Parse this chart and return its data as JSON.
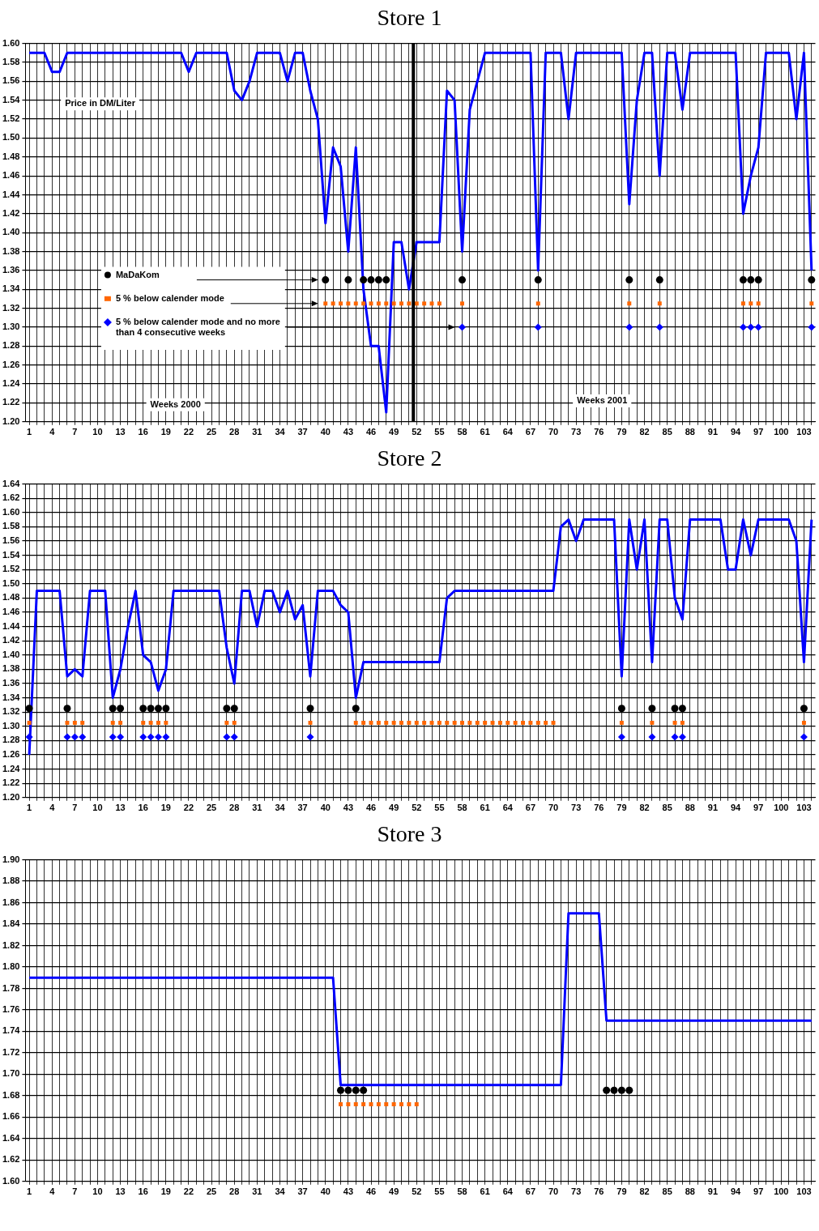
{
  "chart_data": [
    {
      "type": "line",
      "title": "Store 1",
      "ylabel": "Price in DM/Liter",
      "legend": "left",
      "annotations": [
        "Weeks 2000",
        "Weeks 2001"
      ],
      "categories": [
        "1",
        null,
        null,
        "4",
        null,
        null,
        "7",
        null,
        null,
        "10",
        null,
        null,
        "13",
        null,
        null,
        "16",
        null,
        null,
        "19",
        null,
        null,
        "22",
        null,
        null,
        "25",
        null,
        null,
        "28",
        null,
        null,
        "31",
        null,
        null,
        "34",
        null,
        null,
        "37",
        null,
        null,
        "40",
        null,
        null,
        "43",
        null,
        null,
        "46",
        null,
        null,
        "49",
        null,
        null,
        "52",
        null,
        null,
        "55",
        null,
        null,
        "58",
        null,
        null,
        "61",
        null,
        null,
        "64",
        null,
        null,
        "67",
        null,
        null,
        "70",
        null,
        null,
        "73",
        null,
        null,
        "76",
        null,
        null,
        "79",
        null,
        null,
        "82",
        null,
        null,
        "85",
        null,
        null,
        "88",
        null,
        null,
        "91",
        null,
        null,
        "94",
        null,
        null,
        "97",
        null,
        null,
        "100",
        null,
        null,
        "103",
        null
      ],
      "ylim": [
        1.2,
        1.6
      ],
      "yticks": [
        {
          "value": 1.2,
          "label": "1.20"
        },
        1.22,
        1.24,
        1.26,
        1.28,
        {
          "value": 1.3,
          "label": "1.30"
        },
        1.32,
        1.34,
        1.36,
        1.38,
        {
          "value": 1.4,
          "label": "1.40"
        },
        1.42,
        1.44,
        1.46,
        1.48,
        {
          "value": 1.5,
          "label": "1.50"
        },
        1.52,
        1.54,
        1.56,
        1.58,
        {
          "value": 1.6,
          "label": "1.60"
        }
      ],
      "grid": true,
      "ref_lines": [
        {
          "axis": "x",
          "value": "52",
          "color": "#000000"
        }
      ],
      "series": [
        {
          "type": "line",
          "marker": "none",
          "color": "#0000ff",
          "values": [
            1.59,
            1.59,
            1.59,
            1.57,
            1.57,
            1.59,
            1.59,
            1.59,
            1.59,
            1.59,
            1.59,
            1.59,
            1.59,
            1.59,
            1.59,
            1.59,
            1.59,
            1.59,
            1.59,
            1.59,
            1.59,
            1.57,
            1.59,
            1.59,
            1.59,
            1.59,
            1.59,
            1.55,
            1.54,
            1.56,
            1.59,
            1.59,
            1.59,
            1.59,
            1.56,
            1.59,
            1.59,
            1.55,
            1.52,
            1.41,
            1.49,
            1.47,
            1.38,
            1.49,
            1.34,
            1.28,
            1.28,
            1.21,
            1.39,
            1.39,
            1.34,
            1.39,
            1.39,
            1.39,
            1.39,
            1.55,
            1.54,
            1.38,
            1.53,
            1.56,
            1.59,
            1.59,
            1.59,
            1.59,
            1.59,
            1.59,
            1.59,
            1.36,
            1.59,
            1.59,
            1.59,
            1.52,
            1.59,
            1.59,
            1.59,
            1.59,
            1.59,
            1.59,
            1.59,
            1.43,
            1.54,
            1.59,
            1.59,
            1.46,
            1.59,
            1.59,
            1.53,
            1.59,
            1.59,
            1.59,
            1.59,
            1.59,
            1.59,
            1.59,
            1.42,
            1.46,
            1.49,
            1.59,
            1.59,
            1.59,
            1.59,
            1.52,
            1.59,
            1.36
          ]
        },
        {
          "type": "scatter",
          "marker": "circle",
          "name": "MaDaKom",
          "color": "#000000",
          "values": [
            null,
            null,
            null,
            null,
            null,
            null,
            null,
            null,
            null,
            null,
            null,
            null,
            null,
            null,
            null,
            null,
            null,
            null,
            null,
            null,
            null,
            null,
            null,
            null,
            null,
            null,
            null,
            null,
            null,
            null,
            null,
            null,
            null,
            null,
            null,
            null,
            null,
            null,
            null,
            1.35,
            null,
            null,
            1.35,
            null,
            1.35,
            1.35,
            1.35,
            1.35,
            null,
            null,
            null,
            null,
            null,
            null,
            null,
            null,
            null,
            1.35,
            null,
            null,
            null,
            null,
            null,
            null,
            null,
            null,
            null,
            1.35,
            null,
            null,
            null,
            null,
            null,
            null,
            null,
            null,
            null,
            null,
            null,
            1.35,
            null,
            null,
            null,
            1.35,
            null,
            null,
            null,
            null,
            null,
            null,
            null,
            null,
            null,
            null,
            1.35,
            1.35,
            1.35,
            null,
            null,
            null,
            null,
            null,
            null,
            1.35
          ]
        },
        {
          "type": "scatter",
          "marker": "square",
          "name": "5 % below calender mode",
          "color": "#ff6600",
          "values": [
            null,
            null,
            null,
            null,
            null,
            null,
            null,
            null,
            null,
            null,
            null,
            null,
            null,
            null,
            null,
            null,
            null,
            null,
            null,
            null,
            null,
            null,
            null,
            null,
            null,
            null,
            null,
            null,
            null,
            null,
            null,
            null,
            null,
            null,
            null,
            null,
            null,
            null,
            null,
            1.325,
            1.325,
            1.325,
            1.325,
            1.325,
            1.325,
            1.325,
            1.325,
            1.325,
            1.325,
            1.325,
            1.325,
            1.325,
            1.325,
            1.325,
            1.325,
            null,
            null,
            1.325,
            null,
            null,
            null,
            null,
            null,
            null,
            null,
            null,
            null,
            1.325,
            null,
            null,
            null,
            null,
            null,
            null,
            null,
            null,
            null,
            null,
            null,
            1.325,
            null,
            null,
            null,
            1.325,
            null,
            null,
            null,
            null,
            null,
            null,
            null,
            null,
            null,
            null,
            1.325,
            1.325,
            1.325,
            null,
            null,
            null,
            null,
            null,
            null,
            1.325
          ]
        },
        {
          "type": "scatter",
          "marker": "diamond",
          "name": "5 % below calender mode and no more than 4 consecutive weeks",
          "color": "#0000ff",
          "values": [
            null,
            null,
            null,
            null,
            null,
            null,
            null,
            null,
            null,
            null,
            null,
            null,
            null,
            null,
            null,
            null,
            null,
            null,
            null,
            null,
            null,
            null,
            null,
            null,
            null,
            null,
            null,
            null,
            null,
            null,
            null,
            null,
            null,
            null,
            null,
            null,
            null,
            null,
            null,
            null,
            null,
            null,
            null,
            null,
            null,
            null,
            null,
            null,
            null,
            null,
            null,
            null,
            null,
            null,
            null,
            null,
            null,
            1.3,
            null,
            null,
            null,
            null,
            null,
            null,
            null,
            null,
            null,
            1.3,
            null,
            null,
            null,
            null,
            null,
            null,
            null,
            null,
            null,
            null,
            null,
            1.3,
            null,
            null,
            null,
            1.3,
            null,
            null,
            null,
            null,
            null,
            null,
            null,
            null,
            null,
            null,
            1.3,
            1.3,
            1.3,
            null,
            null,
            null,
            null,
            null,
            null,
            1.3
          ]
        }
      ]
    },
    {
      "type": "line",
      "title": "Store 2",
      "categories": [
        "1",
        null,
        null,
        "4",
        null,
        null,
        "7",
        null,
        null,
        "10",
        null,
        null,
        "13",
        null,
        null,
        "16",
        null,
        null,
        "19",
        null,
        null,
        "22",
        null,
        null,
        "25",
        null,
        null,
        "28",
        null,
        null,
        "31",
        null,
        null,
        "34",
        null,
        null,
        "37",
        null,
        null,
        "40",
        null,
        null,
        "43",
        null,
        null,
        "46",
        null,
        null,
        "49",
        null,
        null,
        "52",
        null,
        null,
        "55",
        null,
        null,
        "58",
        null,
        null,
        "61",
        null,
        null,
        "64",
        null,
        null,
        "67",
        null,
        null,
        "70",
        null,
        null,
        "73",
        null,
        null,
        "76",
        null,
        null,
        "79",
        null,
        null,
        "82",
        null,
        null,
        "85",
        null,
        null,
        "88",
        null,
        null,
        "91",
        null,
        null,
        "94",
        null,
        null,
        "97",
        null,
        null,
        "100",
        null,
        null,
        "103",
        null
      ],
      "ylim": [
        1.2,
        1.64
      ],
      "yticks": [
        {
          "value": 1.2,
          "label": "1.20"
        },
        1.22,
        1.24,
        1.26,
        1.28,
        {
          "value": 1.3,
          "label": "1.30"
        },
        1.32,
        1.34,
        1.36,
        1.38,
        {
          "value": 1.4,
          "label": "1.40"
        },
        1.42,
        1.44,
        1.46,
        1.48,
        {
          "value": 1.5,
          "label": "1.50"
        },
        1.52,
        1.54,
        1.56,
        1.58,
        {
          "value": 1.6,
          "label": "1.60"
        },
        1.62,
        1.64
      ],
      "grid": true,
      "series": [
        {
          "type": "line",
          "marker": "none",
          "color": "#0000ff",
          "values": [
            1.26,
            1.49,
            1.49,
            1.49,
            1.49,
            1.37,
            1.38,
            1.37,
            1.49,
            1.49,
            1.49,
            1.34,
            1.38,
            1.44,
            1.49,
            1.4,
            1.39,
            1.35,
            1.38,
            1.49,
            1.49,
            1.49,
            1.49,
            1.49,
            1.49,
            1.49,
            1.41,
            1.36,
            1.49,
            1.49,
            1.44,
            1.49,
            1.49,
            1.46,
            1.49,
            1.45,
            1.47,
            1.37,
            1.49,
            1.49,
            1.49,
            1.47,
            1.46,
            1.34,
            1.39,
            1.39,
            1.39,
            1.39,
            1.39,
            1.39,
            1.39,
            1.39,
            1.39,
            1.39,
            1.39,
            1.48,
            1.49,
            1.49,
            1.49,
            1.49,
            1.49,
            1.49,
            1.49,
            1.49,
            1.49,
            1.49,
            1.49,
            1.49,
            1.49,
            1.49,
            1.58,
            1.59,
            1.56,
            1.59,
            1.59,
            1.59,
            1.59,
            1.59,
            1.37,
            1.59,
            1.52,
            1.59,
            1.39,
            1.59,
            1.59,
            1.48,
            1.45,
            1.59,
            1.59,
            1.59,
            1.59,
            1.59,
            1.52,
            1.52,
            1.59,
            1.54,
            1.59,
            1.59,
            1.59,
            1.59,
            1.59,
            1.56,
            1.39,
            1.59
          ]
        },
        {
          "type": "scatter",
          "marker": "circle",
          "color": "#000000",
          "values": [
            1.325,
            null,
            null,
            null,
            null,
            1.325,
            null,
            null,
            null,
            null,
            null,
            1.325,
            1.325,
            null,
            null,
            1.325,
            1.325,
            1.325,
            1.325,
            null,
            null,
            null,
            null,
            null,
            null,
            null,
            1.325,
            1.325,
            null,
            null,
            null,
            null,
            null,
            null,
            null,
            null,
            null,
            1.325,
            null,
            null,
            null,
            null,
            null,
            1.325,
            null,
            null,
            null,
            null,
            null,
            null,
            null,
            null,
            null,
            null,
            null,
            null,
            null,
            null,
            null,
            null,
            null,
            null,
            null,
            null,
            null,
            null,
            null,
            null,
            null,
            null,
            null,
            null,
            null,
            null,
            null,
            null,
            null,
            null,
            1.325,
            null,
            null,
            null,
            1.325,
            null,
            null,
            1.325,
            1.325,
            null,
            null,
            null,
            null,
            null,
            null,
            null,
            null,
            null,
            null,
            null,
            null,
            null,
            null,
            null,
            1.325,
            null
          ]
        },
        {
          "type": "scatter",
          "marker": "square",
          "color": "#ff6600",
          "values": [
            1.305,
            null,
            null,
            null,
            null,
            1.305,
            1.305,
            1.305,
            null,
            null,
            null,
            1.305,
            1.305,
            null,
            null,
            1.305,
            1.305,
            1.305,
            1.305,
            null,
            null,
            null,
            null,
            null,
            null,
            null,
            1.305,
            1.305,
            null,
            null,
            null,
            null,
            null,
            null,
            null,
            null,
            null,
            1.305,
            null,
            null,
            null,
            null,
            null,
            1.305,
            1.305,
            1.305,
            1.305,
            1.305,
            1.305,
            1.305,
            1.305,
            1.305,
            1.305,
            1.305,
            1.305,
            1.305,
            1.305,
            1.305,
            1.305,
            1.305,
            1.305,
            1.305,
            1.305,
            1.305,
            1.305,
            1.305,
            1.305,
            1.305,
            1.305,
            1.305,
            null,
            null,
            null,
            null,
            null,
            null,
            null,
            null,
            1.305,
            null,
            null,
            null,
            1.305,
            null,
            null,
            1.305,
            1.305,
            null,
            null,
            null,
            null,
            null,
            null,
            null,
            null,
            null,
            null,
            null,
            null,
            null,
            null,
            null,
            1.305,
            null
          ]
        },
        {
          "type": "scatter",
          "marker": "diamond",
          "color": "#0000ff",
          "values": [
            1.285,
            null,
            null,
            null,
            null,
            1.285,
            1.285,
            1.285,
            null,
            null,
            null,
            1.285,
            1.285,
            null,
            null,
            1.285,
            1.285,
            1.285,
            1.285,
            null,
            null,
            null,
            null,
            null,
            null,
            null,
            1.285,
            1.285,
            null,
            null,
            null,
            null,
            null,
            null,
            null,
            null,
            null,
            1.285,
            null,
            null,
            null,
            null,
            null,
            null,
            null,
            null,
            null,
            null,
            null,
            null,
            null,
            null,
            null,
            null,
            null,
            null,
            null,
            null,
            null,
            null,
            null,
            null,
            null,
            null,
            null,
            null,
            null,
            null,
            null,
            null,
            null,
            null,
            null,
            null,
            null,
            null,
            null,
            null,
            1.285,
            null,
            null,
            null,
            1.285,
            null,
            null,
            1.285,
            1.285,
            null,
            null,
            null,
            null,
            null,
            null,
            null,
            null,
            null,
            null,
            null,
            null,
            null,
            null,
            null,
            1.285,
            null
          ]
        }
      ]
    },
    {
      "type": "line",
      "title": "Store 3",
      "categories": [
        "1",
        null,
        null,
        "4",
        null,
        null,
        "7",
        null,
        null,
        "10",
        null,
        null,
        "13",
        null,
        null,
        "16",
        null,
        null,
        "19",
        null,
        null,
        "22",
        null,
        null,
        "25",
        null,
        null,
        "28",
        null,
        null,
        "31",
        null,
        null,
        "34",
        null,
        null,
        "37",
        null,
        null,
        "40",
        null,
        null,
        "43",
        null,
        null,
        "46",
        null,
        null,
        "49",
        null,
        null,
        "52",
        null,
        null,
        "55",
        null,
        null,
        "58",
        null,
        null,
        "61",
        null,
        null,
        "64",
        null,
        null,
        "67",
        null,
        null,
        "70",
        null,
        null,
        "73",
        null,
        null,
        "76",
        null,
        null,
        "79",
        null,
        null,
        "82",
        null,
        null,
        "85",
        null,
        null,
        "88",
        null,
        null,
        "91",
        null,
        null,
        "94",
        null,
        null,
        "97",
        null,
        null,
        "100",
        null,
        null,
        "103",
        null
      ],
      "ylim": [
        1.6,
        1.9
      ],
      "yticks": [
        {
          "value": 1.6,
          "label": "1.60"
        },
        1.62,
        1.64,
        1.66,
        1.68,
        {
          "value": 1.7,
          "label": "1.70"
        },
        1.72,
        1.74,
        1.76,
        1.78,
        {
          "value": 1.8,
          "label": "1.80"
        },
        1.82,
        1.84,
        1.86,
        1.88,
        {
          "value": 1.9,
          "label": "1.90"
        }
      ],
      "grid": true,
      "series": [
        {
          "type": "line",
          "marker": "none",
          "color": "#0000ff",
          "values": [
            1.79,
            1.79,
            1.79,
            1.79,
            1.79,
            1.79,
            1.79,
            1.79,
            1.79,
            1.79,
            1.79,
            1.79,
            1.79,
            1.79,
            1.79,
            1.79,
            1.79,
            1.79,
            1.79,
            1.79,
            1.79,
            1.79,
            1.79,
            1.79,
            1.79,
            1.79,
            1.79,
            1.79,
            1.79,
            1.79,
            1.79,
            1.79,
            1.79,
            1.79,
            1.79,
            1.79,
            1.79,
            1.79,
            1.79,
            1.79,
            1.79,
            1.69,
            1.69,
            1.69,
            1.69,
            1.69,
            1.69,
            1.69,
            1.69,
            1.69,
            1.69,
            1.69,
            1.69,
            1.69,
            1.69,
            1.69,
            1.69,
            1.69,
            1.69,
            1.69,
            1.69,
            1.69,
            1.69,
            1.69,
            1.69,
            1.69,
            1.69,
            1.69,
            1.69,
            1.69,
            1.69,
            1.85,
            1.85,
            1.85,
            1.85,
            1.85,
            1.75,
            1.75,
            1.75,
            1.75,
            1.75,
            1.75,
            1.75,
            1.75,
            1.75,
            1.75,
            1.75,
            1.75,
            1.75,
            1.75,
            1.75,
            1.75,
            1.75,
            1.75,
            1.75,
            1.75,
            1.75,
            1.75,
            1.75,
            1.75,
            1.75,
            1.75,
            1.75,
            1.75
          ]
        },
        {
          "type": "scatter",
          "marker": "circle",
          "color": "#000000",
          "values": [
            null,
            null,
            null,
            null,
            null,
            null,
            null,
            null,
            null,
            null,
            null,
            null,
            null,
            null,
            null,
            null,
            null,
            null,
            null,
            null,
            null,
            null,
            null,
            null,
            null,
            null,
            null,
            null,
            null,
            null,
            null,
            null,
            null,
            null,
            null,
            null,
            null,
            null,
            null,
            null,
            null,
            1.685,
            1.685,
            1.685,
            1.685,
            null,
            null,
            null,
            null,
            null,
            null,
            null,
            null,
            null,
            null,
            null,
            null,
            null,
            null,
            null,
            null,
            null,
            null,
            null,
            null,
            null,
            null,
            null,
            null,
            null,
            null,
            null,
            null,
            null,
            null,
            null,
            1.685,
            1.685,
            1.685,
            1.685,
            null,
            null,
            null,
            null,
            null,
            null,
            null,
            null,
            null,
            null,
            null,
            null,
            null,
            null,
            null,
            null,
            null,
            null,
            null,
            null,
            null,
            null,
            null,
            null
          ]
        },
        {
          "type": "scatter",
          "marker": "square",
          "color": "#ff6600",
          "values": [
            null,
            null,
            null,
            null,
            null,
            null,
            null,
            null,
            null,
            null,
            null,
            null,
            null,
            null,
            null,
            null,
            null,
            null,
            null,
            null,
            null,
            null,
            null,
            null,
            null,
            null,
            null,
            null,
            null,
            null,
            null,
            null,
            null,
            null,
            null,
            null,
            null,
            null,
            null,
            null,
            null,
            1.672,
            1.672,
            1.672,
            1.672,
            1.672,
            1.672,
            1.672,
            1.672,
            1.672,
            1.672,
            1.672,
            null,
            null,
            null,
            null,
            null,
            null,
            null,
            null,
            null,
            null,
            null,
            null,
            null,
            null,
            null,
            null,
            null,
            null,
            null,
            null,
            null,
            null,
            null,
            null,
            null,
            null,
            null,
            null,
            null,
            null,
            null,
            null,
            null,
            null,
            null,
            null,
            null,
            null,
            null,
            null,
            null,
            null,
            null,
            null,
            null,
            null,
            null,
            null,
            null,
            null,
            null,
            null
          ]
        }
      ]
    }
  ]
}
